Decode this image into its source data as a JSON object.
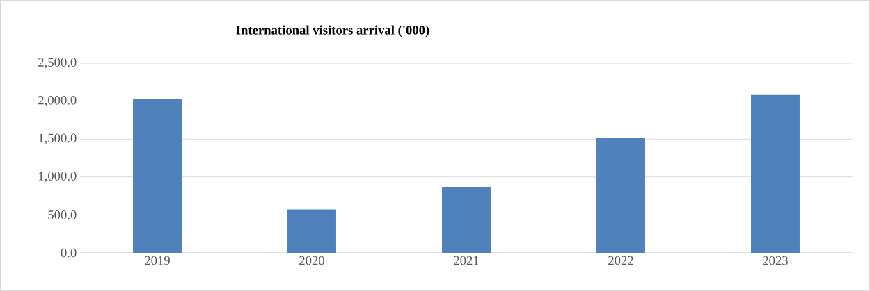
{
  "chart_data": {
    "type": "bar",
    "title": "International visitors arrival ('000)",
    "categories": [
      "2019",
      "2020",
      "2021",
      "2022",
      "2023"
    ],
    "values": [
      2030,
      572,
      869,
      1510,
      2082
    ],
    "color": "#4f81bd",
    "ylim": [
      0,
      2500
    ],
    "yticks": [
      {
        "value": 0,
        "label": "0.0"
      },
      {
        "value": 500,
        "label": "500.0"
      },
      {
        "value": 1000,
        "label": "1,000.0"
      },
      {
        "value": 1500,
        "label": "1,500.0"
      },
      {
        "value": 2000,
        "label": "2,000.0"
      },
      {
        "value": 2500,
        "label": "2,500.0"
      }
    ],
    "grid": "y"
  }
}
